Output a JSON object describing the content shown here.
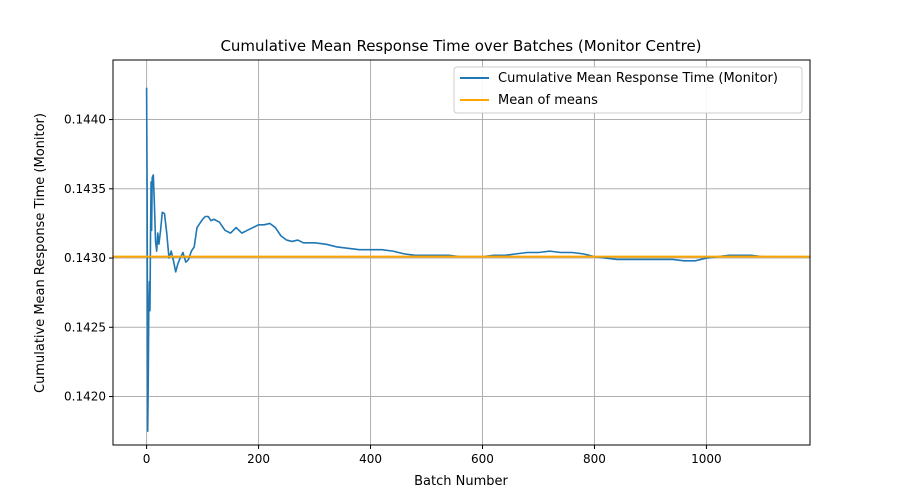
{
  "chart_data": {
    "type": "line",
    "title": "Cumulative Mean Response Time over Batches (Monitor Centre)",
    "xlabel": "Batch Number",
    "ylabel": "Cumulative Mean Response Time (Monitor)",
    "xlim": [
      -60,
      1185
    ],
    "ylim": [
      0.14165,
      0.14443
    ],
    "xticks": [
      0,
      200,
      400,
      600,
      800,
      1000
    ],
    "yticks": [
      0.142,
      0.1425,
      0.143,
      0.1435,
      0.144
    ],
    "ytick_labels": [
      "0.1420",
      "0.1425",
      "0.1430",
      "0.1435",
      "0.1440"
    ],
    "grid": true,
    "legend_position": "top-right",
    "colors": {
      "line": "#1f77b4",
      "mean": "#ffa500"
    },
    "series": [
      {
        "name": "Cumulative Mean Response Time (Monitor)",
        "x": [
          0,
          1,
          2,
          3,
          4,
          5,
          6,
          7,
          8,
          9,
          10,
          12,
          14,
          16,
          18,
          20,
          22,
          25,
          28,
          32,
          36,
          40,
          44,
          48,
          52,
          56,
          60,
          65,
          70,
          75,
          80,
          85,
          90,
          95,
          100,
          105,
          110,
          115,
          120,
          130,
          140,
          150,
          160,
          170,
          180,
          190,
          200,
          210,
          220,
          230,
          240,
          250,
          260,
          270,
          280,
          300,
          320,
          340,
          360,
          380,
          400,
          420,
          440,
          460,
          480,
          500,
          520,
          540,
          560,
          580,
          600,
          620,
          640,
          660,
          680,
          700,
          720,
          740,
          760,
          780,
          800,
          820,
          840,
          860,
          880,
          900,
          920,
          940,
          960,
          980,
          1000,
          1020,
          1040,
          1060,
          1080,
          1100,
          1120
        ],
        "y": [
          0.14423,
          0.14345,
          0.14175,
          0.14212,
          0.14265,
          0.14283,
          0.14262,
          0.14315,
          0.14355,
          0.1432,
          0.14358,
          0.1436,
          0.14338,
          0.14312,
          0.14305,
          0.14318,
          0.1431,
          0.1432,
          0.14333,
          0.14332,
          0.14318,
          0.143,
          0.14305,
          0.14298,
          0.1429,
          0.14296,
          0.143,
          0.14304,
          0.14297,
          0.14299,
          0.14305,
          0.14308,
          0.14322,
          0.14325,
          0.14328,
          0.1433,
          0.1433,
          0.14327,
          0.14328,
          0.14326,
          0.1432,
          0.14318,
          0.14322,
          0.14318,
          0.1432,
          0.14322,
          0.14324,
          0.14324,
          0.14325,
          0.14322,
          0.14316,
          0.14313,
          0.14312,
          0.14313,
          0.14311,
          0.14311,
          0.1431,
          0.14308,
          0.14307,
          0.14306,
          0.14306,
          0.14306,
          0.14305,
          0.14303,
          0.14302,
          0.14302,
          0.14302,
          0.14302,
          0.14301,
          0.14301,
          0.14301,
          0.14302,
          0.14302,
          0.14303,
          0.14304,
          0.14304,
          0.14305,
          0.14304,
          0.14304,
          0.14303,
          0.14301,
          0.143,
          0.14299,
          0.14299,
          0.14299,
          0.14299,
          0.14299,
          0.14299,
          0.14298,
          0.14298,
          0.143,
          0.14301,
          0.14302,
          0.14302,
          0.14302,
          0.14301,
          0.14301
        ]
      },
      {
        "name": "Mean of means",
        "y": 0.14301
      }
    ]
  }
}
